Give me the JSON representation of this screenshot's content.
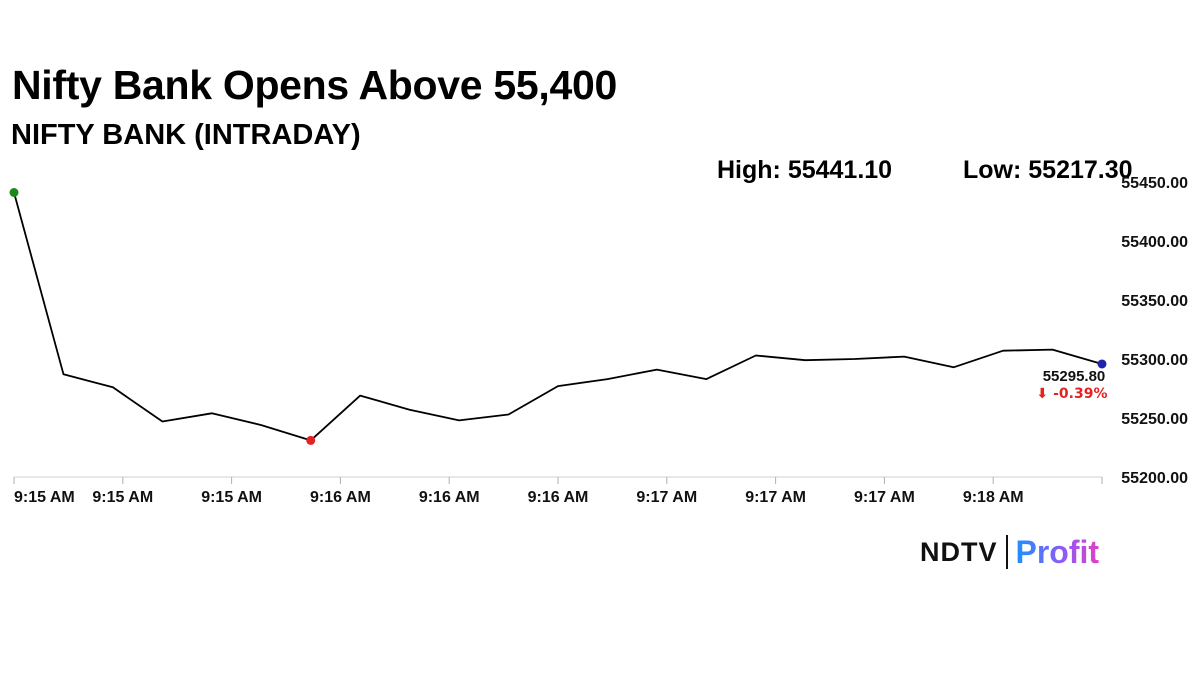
{
  "header": {
    "title": "Nifty Bank Opens Above 55,400",
    "subtitle": "NIFTY BANK (INTRADAY)",
    "high_label": "High: 55441.10",
    "low_label": "Low: 55217.30"
  },
  "brand": {
    "ndtv": "NDTV",
    "profit": "Profit"
  },
  "chart_data": {
    "type": "line",
    "ylim": [
      55200,
      55450
    ],
    "yticks": [
      55200,
      55250,
      55300,
      55350,
      55400,
      55450
    ],
    "ytick_labels": [
      "55200.00",
      "55250.00",
      "55300.00",
      "55350.00",
      "55400.00",
      "55450.00"
    ],
    "xtick_labels": [
      "9:15 AM",
      "9:15 AM",
      "9:15 AM",
      "9:16 AM",
      "9:16 AM",
      "9:16 AM",
      "9:17 AM",
      "9:17 AM",
      "9:17 AM",
      "9:18 AM"
    ],
    "series": [
      {
        "values": [
          55441.1,
          55287,
          55276,
          55247,
          55254,
          55244,
          55231,
          55269,
          55257,
          55248,
          55253,
          55277,
          55283,
          55291,
          55283,
          55303,
          55299,
          55300,
          55302,
          55293,
          55307,
          55308,
          55295.8
        ]
      }
    ],
    "high_point": {
      "index": 0,
      "value": 55441.1,
      "color": "#1a8a1a"
    },
    "low_point": {
      "index": 6,
      "value": 55231,
      "color": "#e52222"
    },
    "last_point": {
      "index": 22,
      "value": 55295.8,
      "color": "#2222aa"
    },
    "last_value_label": "55295.80",
    "change_label": "⬇ -0.39%",
    "change_color": "#e52222",
    "line_color": "#000000",
    "grid": false
  }
}
